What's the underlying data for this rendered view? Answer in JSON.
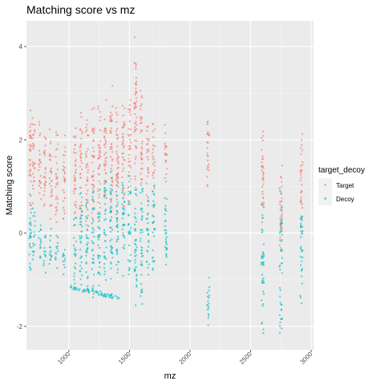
{
  "chart_data": {
    "type": "scatter",
    "title": "Matching score vs mz",
    "xlabel": "mz",
    "ylabel": "Matching score",
    "xlim": [
      650,
      3020
    ],
    "ylim": [
      -2.5,
      4.55
    ],
    "x_ticks": [
      1000,
      1500,
      2000,
      2500,
      3000
    ],
    "y_ticks": [
      -2,
      0,
      2,
      4
    ],
    "legend": {
      "title": "target_decoy",
      "position": "right",
      "entries": [
        "Target",
        "Decoy"
      ]
    },
    "series": [
      {
        "name": "Target",
        "color": "#F8766D",
        "clusters": [
          {
            "x": 680,
            "y_min": 0.5,
            "y_max": 2.9
          },
          {
            "x": 710,
            "y_min": 0.6,
            "y_max": 2.5
          },
          {
            "x": 760,
            "y_min": 0.7,
            "y_max": 2.4
          },
          {
            "x": 800,
            "y_min": 0.5,
            "y_max": 2.3
          },
          {
            "x": 850,
            "y_min": 0.3,
            "y_max": 2.3
          },
          {
            "x": 900,
            "y_min": 0.2,
            "y_max": 2.2
          },
          {
            "x": 960,
            "y_min": 0.3,
            "y_max": 2.2
          },
          {
            "x": 1050,
            "y_min": 0.0,
            "y_max": 2.4
          },
          {
            "x": 1100,
            "y_min": 0.0,
            "y_max": 2.6
          },
          {
            "x": 1150,
            "y_min": 0.0,
            "y_max": 2.5
          },
          {
            "x": 1200,
            "y_min": 0.2,
            "y_max": 2.8
          },
          {
            "x": 1250,
            "y_min": 0.2,
            "y_max": 2.9
          },
          {
            "x": 1300,
            "y_min": 0.3,
            "y_max": 3.0
          },
          {
            "x": 1350,
            "y_min": 0.3,
            "y_max": 3.2
          },
          {
            "x": 1400,
            "y_min": 0.2,
            "y_max": 3.0
          },
          {
            "x": 1450,
            "y_min": 0.5,
            "y_max": 2.9
          },
          {
            "x": 1500,
            "y_min": 0.5,
            "y_max": 3.0
          },
          {
            "x": 1550,
            "y_min": 0.8,
            "y_max": 4.2
          },
          {
            "x": 1600,
            "y_min": 0.8,
            "y_max": 3.3
          },
          {
            "x": 1650,
            "y_min": 0.6,
            "y_max": 2.3
          },
          {
            "x": 1700,
            "y_min": 0.8,
            "y_max": 2.4
          },
          {
            "x": 1800,
            "y_min": 1.0,
            "y_max": 2.4
          },
          {
            "x": 2150,
            "y_min": 1.0,
            "y_max": 2.7
          },
          {
            "x": 2600,
            "y_min": 0.0,
            "y_max": 2.4
          },
          {
            "x": 2750,
            "y_min": -0.5,
            "y_max": 1.9
          },
          {
            "x": 2920,
            "y_min": 0.0,
            "y_max": 2.3
          }
        ]
      },
      {
        "name": "Decoy",
        "color": "#00BFC4",
        "clusters": [
          {
            "x": 680,
            "y_min": -0.8,
            "y_max": 0.9
          },
          {
            "x": 710,
            "y_min": -0.6,
            "y_max": 0.6
          },
          {
            "x": 760,
            "y_min": -0.7,
            "y_max": 0.3
          },
          {
            "x": 800,
            "y_min": -0.9,
            "y_max": 0.0
          },
          {
            "x": 850,
            "y_min": -0.9,
            "y_max": 0.1
          },
          {
            "x": 900,
            "y_min": -0.9,
            "y_max": 0.0
          },
          {
            "x": 960,
            "y_min": -0.9,
            "y_max": -0.3
          },
          {
            "x": 1050,
            "y_min": -1.3,
            "y_max": 0.5
          },
          {
            "x": 1100,
            "y_min": -1.3,
            "y_max": 1.0
          },
          {
            "x": 1150,
            "y_min": -1.3,
            "y_max": 0.8
          },
          {
            "x": 1200,
            "y_min": -1.4,
            "y_max": 0.9
          },
          {
            "x": 1250,
            "y_min": -1.4,
            "y_max": 1.0
          },
          {
            "x": 1300,
            "y_min": -1.4,
            "y_max": 1.2
          },
          {
            "x": 1350,
            "y_min": -1.5,
            "y_max": 1.4
          },
          {
            "x": 1400,
            "y_min": -1.2,
            "y_max": 1.2
          },
          {
            "x": 1450,
            "y_min": -1.0,
            "y_max": 1.3
          },
          {
            "x": 1500,
            "y_min": -1.0,
            "y_max": 1.3
          },
          {
            "x": 1550,
            "y_min": -1.8,
            "y_max": 1.0
          },
          {
            "x": 1600,
            "y_min": -1.6,
            "y_max": 1.2
          },
          {
            "x": 1650,
            "y_min": -1.0,
            "y_max": 0.8
          },
          {
            "x": 1700,
            "y_min": -0.8,
            "y_max": 1.3
          },
          {
            "x": 1800,
            "y_min": -1.2,
            "y_max": 0.8
          },
          {
            "x": 2150,
            "y_min": -2.0,
            "y_max": -0.8
          },
          {
            "x": 2600,
            "y_min": -2.2,
            "y_max": 0.8
          },
          {
            "x": 2750,
            "y_min": -2.2,
            "y_max": 1.0
          },
          {
            "x": 2920,
            "y_min": -1.6,
            "y_max": 0.6
          }
        ],
        "band": {
          "x_min": 1000,
          "x_max": 1420,
          "y_start": -1.15,
          "y_end": -1.4
        }
      }
    ]
  }
}
